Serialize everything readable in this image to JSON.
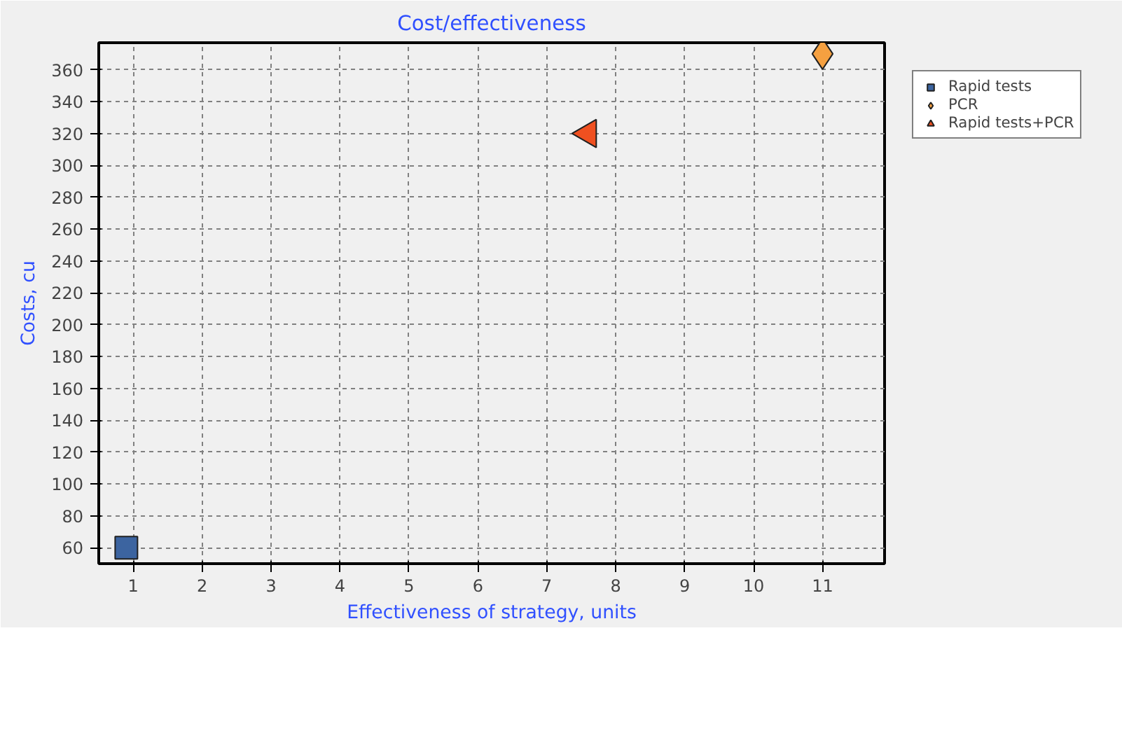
{
  "chart_data": {
    "type": "scatter",
    "title": "Cost/effectiveness",
    "xlabel": "Effectiveness of strategy, units",
    "ylabel": "Costs, cu",
    "series": [
      {
        "name": "Rapid tests",
        "color": "#3c64a0",
        "marker": "square",
        "x": [
          0.9
        ],
        "values": [
          60
        ]
      },
      {
        "name": "PCR",
        "color": "#f5a040",
        "marker": "diamond",
        "x": [
          11
        ],
        "values": [
          370
        ]
      },
      {
        "name": "Rapid tests+PCR",
        "color": "#f05020",
        "marker": "triangle",
        "x": [
          7.6
        ],
        "values": [
          320
        ]
      }
    ],
    "xlim": [
      0.5,
      11.9
    ],
    "ylim": [
      50,
      377
    ],
    "xticks": [
      1,
      2,
      3,
      4,
      5,
      6,
      7,
      8,
      9,
      10,
      11
    ],
    "yticks": [
      60,
      80,
      100,
      120,
      140,
      160,
      180,
      200,
      220,
      240,
      260,
      280,
      300,
      320,
      340,
      360
    ],
    "grid": true,
    "legend": "top right"
  }
}
